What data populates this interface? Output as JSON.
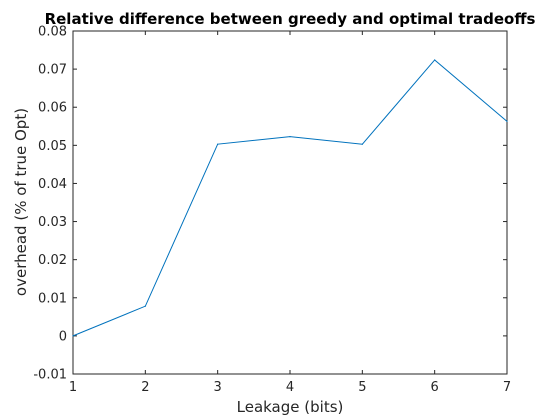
{
  "chart_data": {
    "type": "line",
    "title": "Relative difference between greedy and optimal tradeoffs",
    "xlabel": "Leakage (bits)",
    "ylabel": "overhead (% of true Opt)",
    "xlim": [
      1,
      7
    ],
    "ylim": [
      -0.01,
      0.08
    ],
    "x_ticks": [
      1,
      2,
      3,
      4,
      5,
      6,
      7
    ],
    "x_tick_labels": [
      "1",
      "2",
      "3",
      "4",
      "5",
      "6",
      "7"
    ],
    "y_ticks": [
      -0.01,
      0,
      0.01,
      0.02,
      0.03,
      0.04,
      0.05,
      0.06,
      0.07,
      0.08
    ],
    "y_tick_labels": [
      "-0.01",
      "0",
      "0.01",
      "0.02",
      "0.03",
      "0.04",
      "0.05",
      "0.06",
      "0.07",
      "0.08"
    ],
    "grid": false,
    "series": [
      {
        "color": "#0072bd",
        "x": [
          1,
          2,
          3,
          4,
          5,
          6,
          7
        ],
        "y": [
          0.0,
          0.0078,
          0.0503,
          0.0523,
          0.0503,
          0.0724,
          0.0563
        ]
      }
    ]
  }
}
